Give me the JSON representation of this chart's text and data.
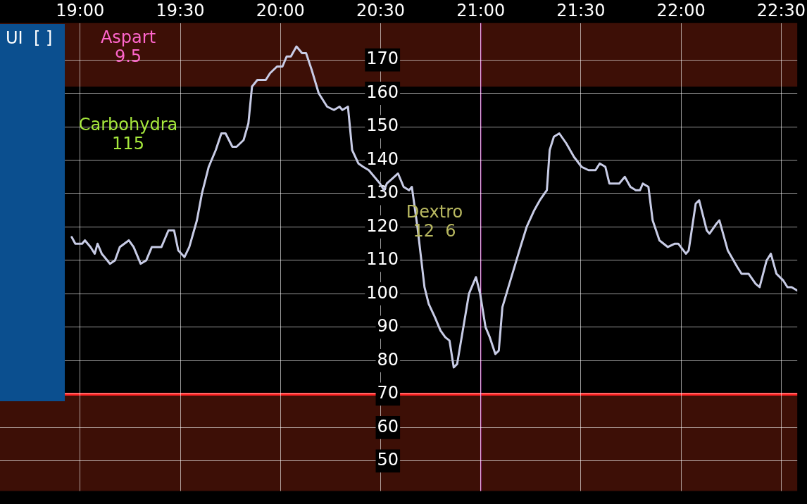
{
  "chart_data": {
    "type": "line",
    "x": [
      18.958,
      18.976,
      19.01,
      19.024,
      19.052,
      19.073,
      19.087,
      19.108,
      19.122,
      19.149,
      19.174,
      19.198,
      19.243,
      19.267,
      19.302,
      19.33,
      19.358,
      19.406,
      19.441,
      19.469,
      19.49,
      19.521,
      19.545,
      19.583,
      19.608,
      19.642,
      19.677,
      19.705,
      19.726,
      19.76,
      19.781,
      19.816,
      19.84,
      19.858,
      19.885,
      19.927,
      19.948,
      19.983,
      20.01,
      20.031,
      20.052,
      20.08,
      20.108,
      20.128,
      20.156,
      20.191,
      20.233,
      20.267,
      20.295,
      20.309,
      20.337,
      20.358,
      20.389,
      20.413,
      20.441,
      20.469,
      20.497,
      20.517,
      20.531,
      20.587,
      20.615,
      20.642,
      20.656,
      20.684,
      20.719,
      20.74,
      20.771,
      20.799,
      20.823,
      20.844,
      20.865,
      20.882,
      20.913,
      20.941,
      20.976,
      20.997,
      21.024,
      21.045,
      21.073,
      21.09,
      21.108,
      21.153,
      21.198,
      21.229,
      21.267,
      21.295,
      21.33,
      21.344,
      21.365,
      21.392,
      21.427,
      21.465,
      21.503,
      21.538,
      21.573,
      21.594,
      21.622,
      21.642,
      21.691,
      21.719,
      21.747,
      21.774,
      21.795,
      21.809,
      21.837,
      21.858,
      21.892,
      21.934,
      21.969,
      21.986,
      22.024,
      22.038,
      22.073,
      22.09,
      22.128,
      22.142,
      22.177,
      22.191,
      22.233,
      22.281,
      22.302,
      22.337,
      22.372,
      22.392,
      22.427,
      22.448,
      22.476,
      22.51,
      22.531,
      22.552,
      22.58
    ],
    "series": [
      {
        "color": "#c8cce6",
        "values": [
          117,
          115,
          115,
          116,
          114,
          112,
          115,
          112,
          111,
          109,
          110,
          114,
          116,
          114,
          109,
          110,
          114,
          114,
          119,
          119,
          113,
          111,
          114,
          122,
          130,
          138,
          143,
          148,
          148,
          144,
          144,
          146,
          151,
          162,
          164,
          164,
          166,
          168,
          168,
          171,
          171,
          174,
          172,
          172,
          167,
          160,
          156,
          155,
          156,
          155,
          156,
          143,
          139,
          138,
          137,
          135,
          133,
          131,
          133,
          136,
          132,
          131,
          132,
          120,
          102,
          97,
          93,
          89,
          87,
          86,
          78,
          79,
          90,
          100,
          105,
          100,
          90,
          87,
          82,
          83,
          96,
          105,
          114,
          120,
          125,
          128,
          131,
          143,
          147,
          148,
          145,
          141,
          138,
          137,
          137,
          139,
          138,
          133,
          133,
          135,
          132,
          131,
          131,
          133,
          132,
          122,
          116,
          114,
          115,
          115,
          112,
          113,
          127,
          128,
          119,
          118,
          121,
          122,
          113,
          108,
          106,
          106,
          103,
          102,
          110,
          112,
          106,
          104,
          102,
          102,
          101
        ]
      }
    ],
    "xlim": [
      18.6,
      22.58
    ],
    "ylim": [
      41,
      181
    ],
    "xticks": [
      {
        "value": 19,
        "label": "19:00"
      },
      {
        "value": 19.5,
        "label": "19:30"
      },
      {
        "value": 20,
        "label": "20:00"
      },
      {
        "value": 20.5,
        "label": "20:30"
      },
      {
        "value": 21,
        "label": "21:00"
      },
      {
        "value": 21.5,
        "label": "21:30"
      },
      {
        "value": 22,
        "label": "22:00"
      },
      {
        "value": 22.5,
        "label": "22:30"
      }
    ],
    "yticks": [
      50,
      60,
      70,
      80,
      90,
      100,
      110,
      120,
      130,
      140,
      150,
      160,
      170
    ],
    "grid": true,
    "legend": false,
    "marker": "none",
    "line_style": "solid",
    "ref_lines": [
      {
        "axis": "y",
        "value": 70,
        "color": "#ff2020"
      },
      {
        "axis": "x",
        "value": 21,
        "color": "#c030c0"
      }
    ],
    "bands": [
      {
        "axis": "y",
        "from": 162,
        "to": 181,
        "color": "#3d0f06"
      },
      {
        "axis": "y",
        "from": 41,
        "to": 70,
        "color": "#3d0f06"
      }
    ],
    "annotations": [
      "UI  [ ]",
      "Aspart\n9.5",
      "Carbohydra\n115",
      "Dextro\n12  6"
    ]
  }
}
